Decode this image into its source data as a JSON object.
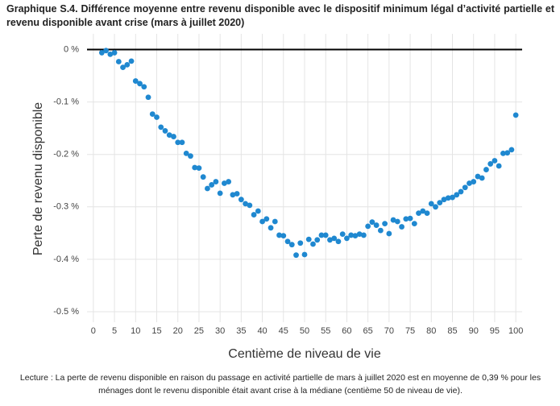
{
  "chart_data": {
    "type": "scatter",
    "title": "Graphique S.4. Différence moyenne entre revenu disponible avec le dispositif minimum légal d’activité partielle et revenu disponible avant crise (mars à juillet 2020)",
    "note": "Lecture : La perte de revenu disponible en raison du passage en activité partielle de mars à juillet 2020 est en moyenne de 0,39 % pour les ménages dont le revenu disponible était avant crise à la médiane (centième 50 de niveau de vie).",
    "xlabel": "Centième de niveau de vie",
    "ylabel": "Perte de revenu disponible",
    "color": "#1f88d0",
    "grid": true,
    "x": [
      2,
      3,
      4,
      5,
      6,
      7,
      8,
      9,
      10,
      11,
      12,
      13,
      14,
      15,
      16,
      17,
      18,
      19,
      20,
      21,
      22,
      23,
      24,
      25,
      26,
      27,
      28,
      29,
      30,
      31,
      32,
      33,
      34,
      35,
      36,
      37,
      38,
      39,
      40,
      41,
      42,
      43,
      44,
      45,
      46,
      47,
      48,
      49,
      50,
      51,
      52,
      53,
      54,
      55,
      56,
      57,
      58,
      59,
      60,
      61,
      62,
      63,
      64,
      65,
      66,
      67,
      68,
      69,
      70,
      71,
      72,
      73,
      74,
      75,
      76,
      77,
      78,
      79,
      80,
      81,
      82,
      83,
      84,
      85,
      86,
      87,
      88,
      89,
      90,
      91,
      92,
      93,
      94,
      95,
      96,
      97,
      98,
      99,
      100
    ],
    "values": [
      -0.006,
      -0.002,
      -0.009,
      -0.006,
      -0.023,
      -0.034,
      -0.029,
      -0.022,
      -0.06,
      -0.065,
      -0.071,
      -0.091,
      -0.123,
      -0.129,
      -0.148,
      -0.155,
      -0.163,
      -0.166,
      -0.177,
      -0.177,
      -0.198,
      -0.203,
      -0.225,
      -0.226,
      -0.243,
      -0.265,
      -0.258,
      -0.252,
      -0.274,
      -0.255,
      -0.252,
      -0.277,
      -0.275,
      -0.286,
      -0.294,
      -0.297,
      -0.315,
      -0.308,
      -0.328,
      -0.323,
      -0.34,
      -0.328,
      -0.354,
      -0.355,
      -0.366,
      -0.372,
      -0.392,
      -0.369,
      -0.391,
      -0.362,
      -0.371,
      -0.363,
      -0.354,
      -0.354,
      -0.363,
      -0.36,
      -0.366,
      -0.352,
      -0.36,
      -0.354,
      -0.355,
      -0.352,
      -0.354,
      -0.337,
      -0.329,
      -0.335,
      -0.345,
      -0.332,
      -0.351,
      -0.325,
      -0.328,
      -0.338,
      -0.323,
      -0.322,
      -0.332,
      -0.312,
      -0.308,
      -0.312,
      -0.294,
      -0.3,
      -0.292,
      -0.286,
      -0.283,
      -0.282,
      -0.277,
      -0.271,
      -0.263,
      -0.255,
      -0.252,
      -0.242,
      -0.245,
      -0.229,
      -0.218,
      -0.212,
      -0.222,
      -0.198,
      -0.197,
      -0.191,
      -0.125
    ],
    "xlim": [
      -1.5,
      101.5
    ],
    "xticks": [
      0,
      5,
      10,
      15,
      20,
      25,
      30,
      35,
      40,
      45,
      50,
      55,
      60,
      65,
      70,
      75,
      80,
      85,
      90,
      95,
      100
    ],
    "ylim": [
      -0.52,
      0.03
    ],
    "yticks": [
      {
        "value": 0,
        "label": "0 %"
      },
      {
        "value": -0.1,
        "label": "-0.1 %"
      },
      {
        "value": -0.2,
        "label": "-0.2 %"
      },
      {
        "value": -0.3,
        "label": "-0.3 %"
      },
      {
        "value": -0.4,
        "label": "-0.4 %"
      },
      {
        "value": -0.5,
        "label": "-0.5 %"
      }
    ]
  }
}
